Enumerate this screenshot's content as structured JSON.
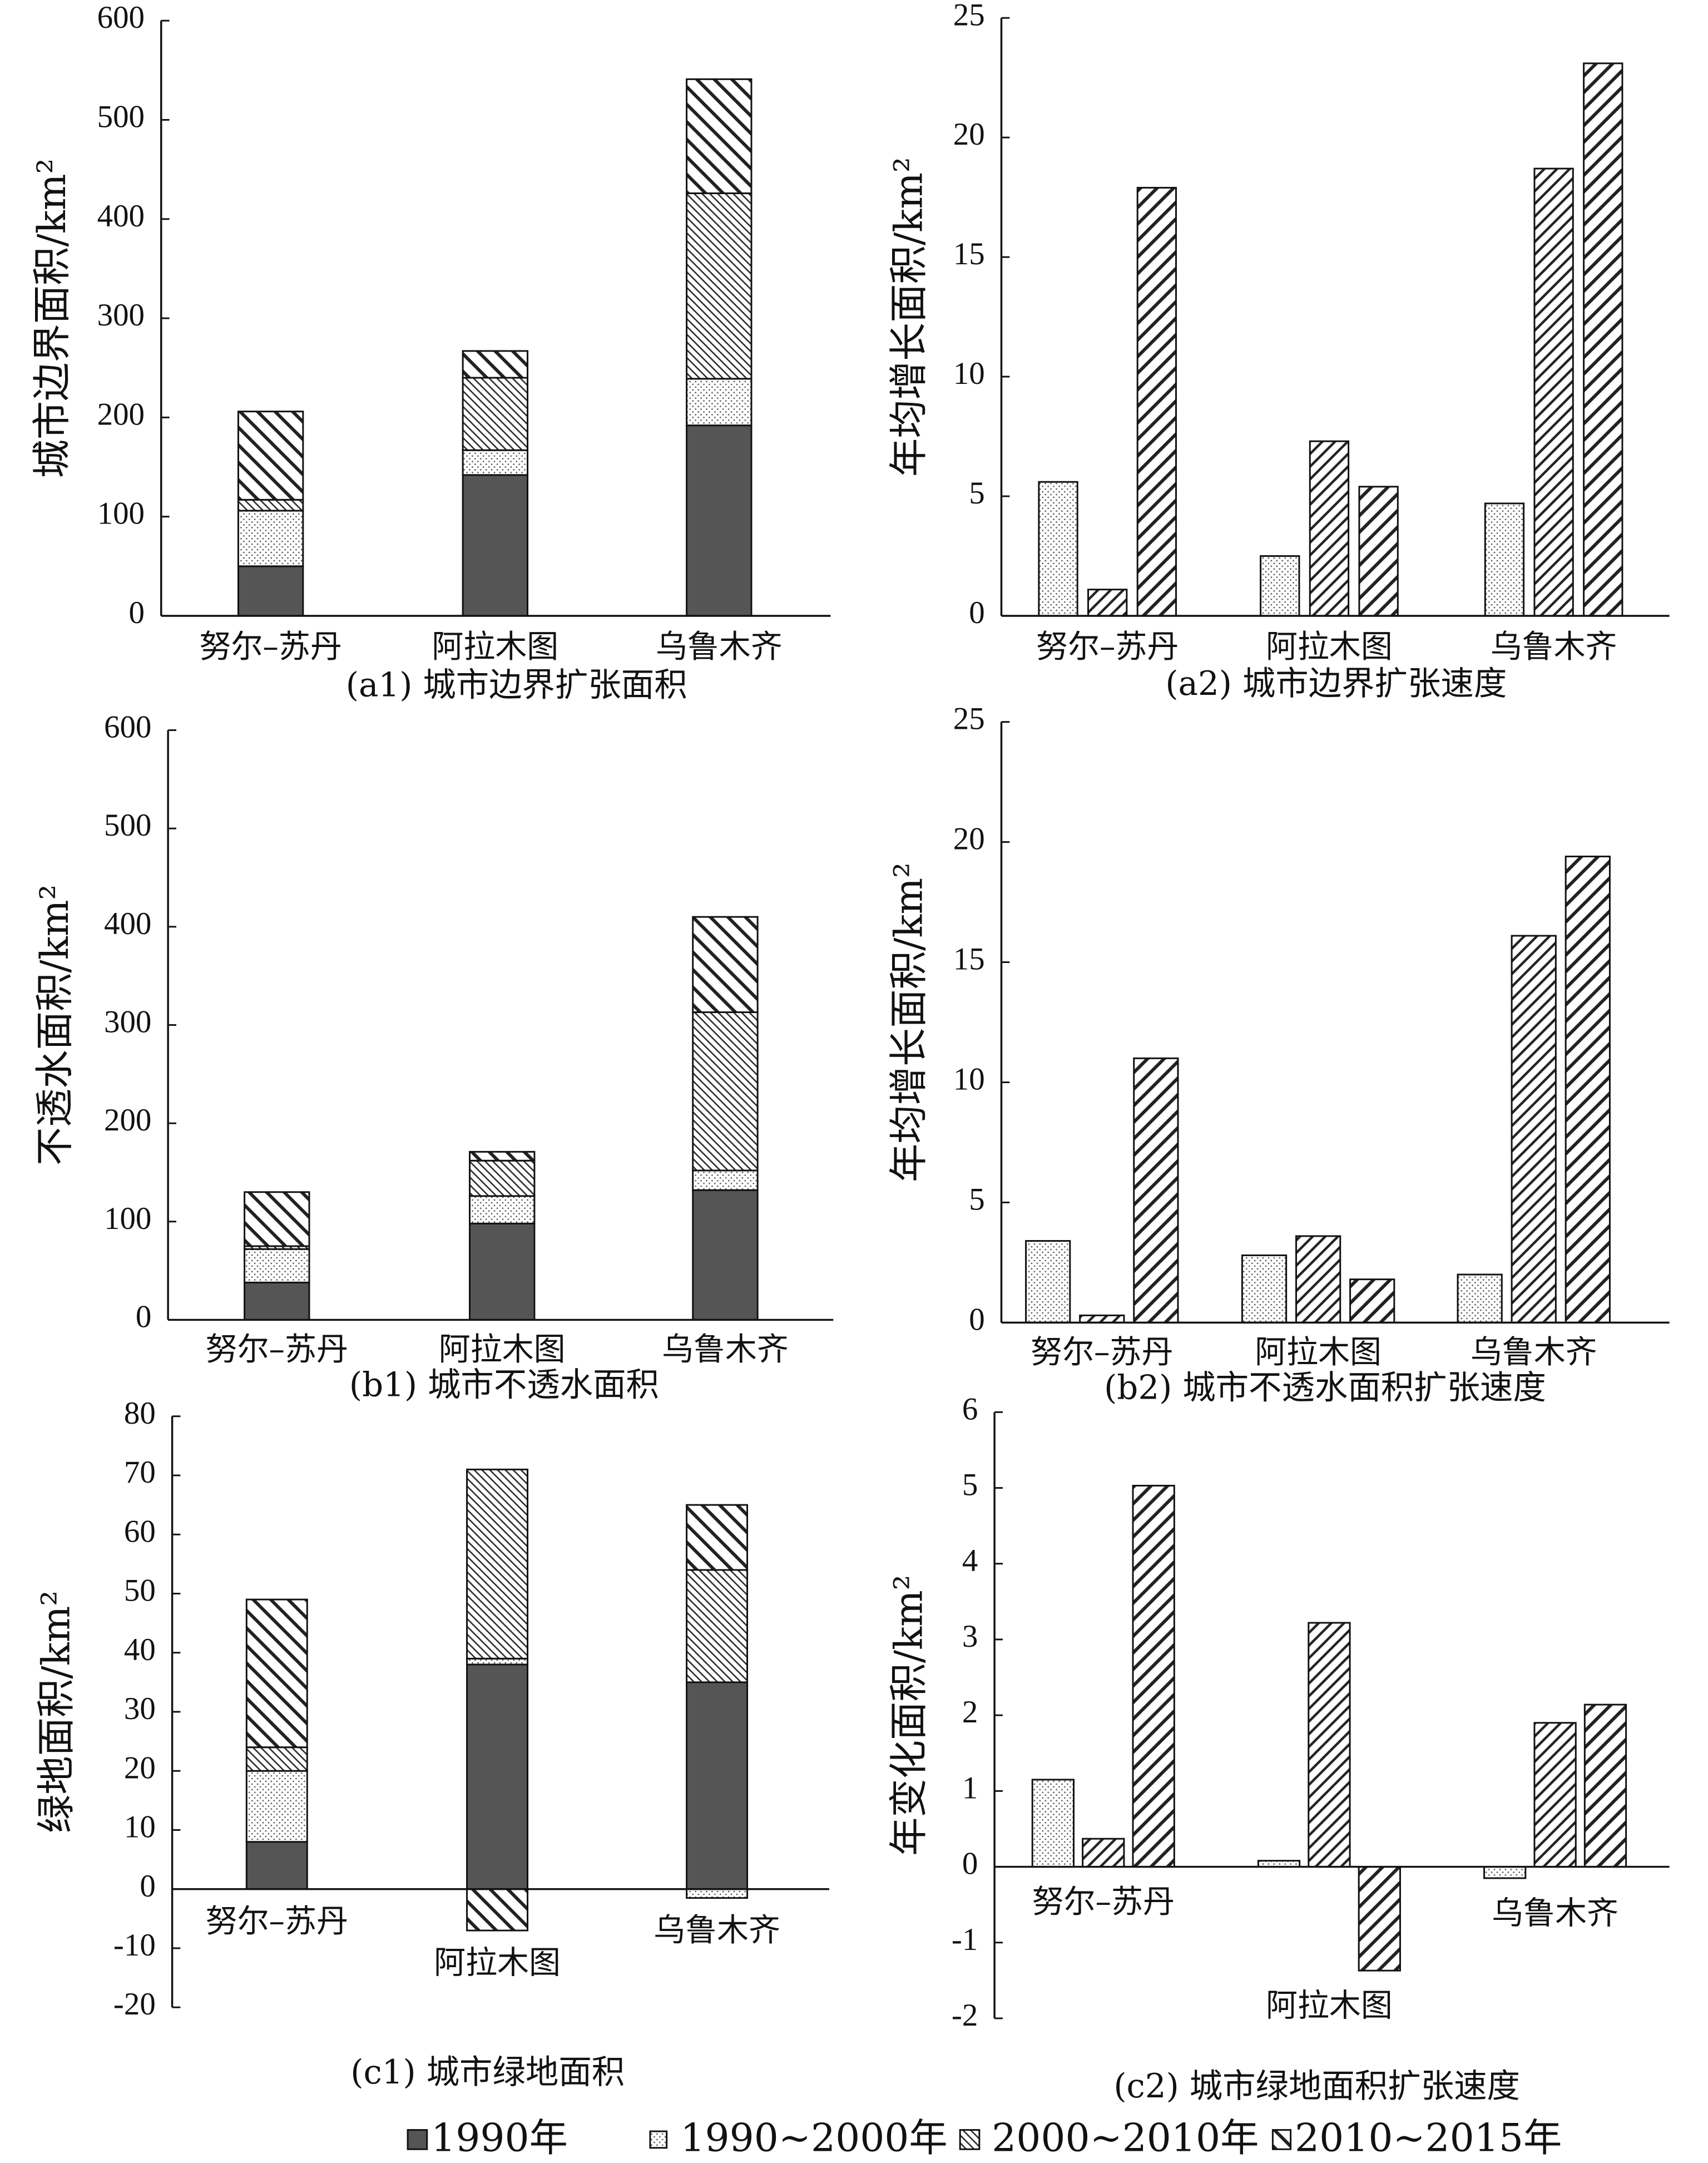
{
  "colors": {
    "dark_fill": "#555555",
    "line": "#111111"
  },
  "legend": {
    "placement": "bottom",
    "items": [
      "1990年",
      "1990~2000年",
      "2000~2010年",
      "2010~2015年"
    ]
  },
  "chart_data": [
    {
      "type": "bar",
      "stacked": true,
      "title": "(a1) 城市边界扩张面积",
      "ylabel": "城市边界面积/km²",
      "ylim": [
        0,
        600
      ],
      "yticks": [
        0,
        100,
        200,
        300,
        400,
        500,
        600
      ],
      "grid": false,
      "categories": [
        "努尔–苏丹",
        "阿拉木图",
        "乌鲁木齐"
      ],
      "series": [
        {
          "legend_index": 0,
          "values": [
            50,
            142,
            192
          ]
        },
        {
          "legend_index": 1,
          "values": [
            56,
            25,
            47
          ]
        },
        {
          "legend_index": 2,
          "values": [
            11,
            73,
            187
          ]
        },
        {
          "legend_index": 3,
          "values": [
            89,
            27,
            115
          ]
        }
      ]
    },
    {
      "type": "bar",
      "stacked": false,
      "title": "(a2) 城市边界扩张速度",
      "ylabel": "年均增长面积/km²",
      "ylim": [
        0,
        25
      ],
      "yticks": [
        0,
        5,
        10,
        15,
        20,
        25
      ],
      "grid": false,
      "categories": [
        "努尔–苏丹",
        "阿拉木图",
        "乌鲁木齐"
      ],
      "series": [
        {
          "legend_index": 1,
          "values": [
            5.6,
            2.5,
            4.7
          ]
        },
        {
          "legend_index": 2,
          "values": [
            1.1,
            7.3,
            18.7
          ]
        },
        {
          "legend_index": 3,
          "values": [
            17.9,
            5.4,
            23.1
          ]
        }
      ]
    },
    {
      "type": "bar",
      "stacked": true,
      "title": "(b1) 城市不透水面积",
      "ylabel": "不透水面积/km²",
      "ylim": [
        0,
        600
      ],
      "yticks": [
        0,
        100,
        200,
        300,
        400,
        500,
        600
      ],
      "grid": false,
      "categories": [
        "努尔–苏丹",
        "阿拉木图",
        "乌鲁木齐"
      ],
      "series": [
        {
          "legend_index": 0,
          "values": [
            38,
            98,
            132
          ]
        },
        {
          "legend_index": 1,
          "values": [
            34,
            28,
            20
          ]
        },
        {
          "legend_index": 2,
          "values": [
            3,
            36,
            161
          ]
        },
        {
          "legend_index": 3,
          "values": [
            55,
            9,
            97
          ]
        }
      ]
    },
    {
      "type": "bar",
      "stacked": false,
      "title": "(b2) 城市不透水面积扩张速度",
      "ylabel": "年均增长面积/km²",
      "ylim": [
        0,
        25
      ],
      "yticks": [
        0,
        5,
        10,
        15,
        20,
        25
      ],
      "grid": false,
      "categories": [
        "努尔–苏丹",
        "阿拉木图",
        "乌鲁木齐"
      ],
      "series": [
        {
          "legend_index": 1,
          "values": [
            3.4,
            2.8,
            2.0
          ]
        },
        {
          "legend_index": 2,
          "values": [
            0.3,
            3.6,
            16.1
          ]
        },
        {
          "legend_index": 3,
          "values": [
            11.0,
            1.8,
            19.4
          ]
        }
      ]
    },
    {
      "type": "bar",
      "stacked": true,
      "title": "(c1) 城市绿地面积",
      "ylabel": "绿地面积/km²",
      "ylim": [
        -20,
        80
      ],
      "yticks": [
        -20,
        -10,
        0,
        10,
        20,
        30,
        40,
        50,
        60,
        70,
        80
      ],
      "grid": false,
      "categories": [
        "努尔–苏丹",
        "阿拉木图",
        "乌鲁木齐"
      ],
      "series": [
        {
          "legend_index": 0,
          "values": [
            8,
            38,
            35
          ]
        },
        {
          "legend_index": 1,
          "values": [
            12,
            1,
            -1.5
          ]
        },
        {
          "legend_index": 2,
          "values": [
            4,
            32,
            19
          ]
        },
        {
          "legend_index": 3,
          "values": [
            25,
            -7,
            11
          ]
        }
      ]
    },
    {
      "type": "bar",
      "stacked": false,
      "title": "(c2) 城市绿地面积扩张速度",
      "ylabel": "年变化面积/km²",
      "ylim": [
        -2,
        6
      ],
      "yticks": [
        -2,
        -1,
        0,
        1,
        2,
        3,
        4,
        5,
        6
      ],
      "grid": false,
      "categories": [
        "努尔–苏丹",
        "阿拉木图",
        "乌鲁木齐"
      ],
      "series": [
        {
          "legend_index": 1,
          "values": [
            1.15,
            0.08,
            -0.15
          ]
        },
        {
          "legend_index": 2,
          "values": [
            0.37,
            3.22,
            1.9
          ]
        },
        {
          "legend_index": 3,
          "values": [
            5.03,
            -1.37,
            2.14
          ]
        }
      ]
    }
  ]
}
